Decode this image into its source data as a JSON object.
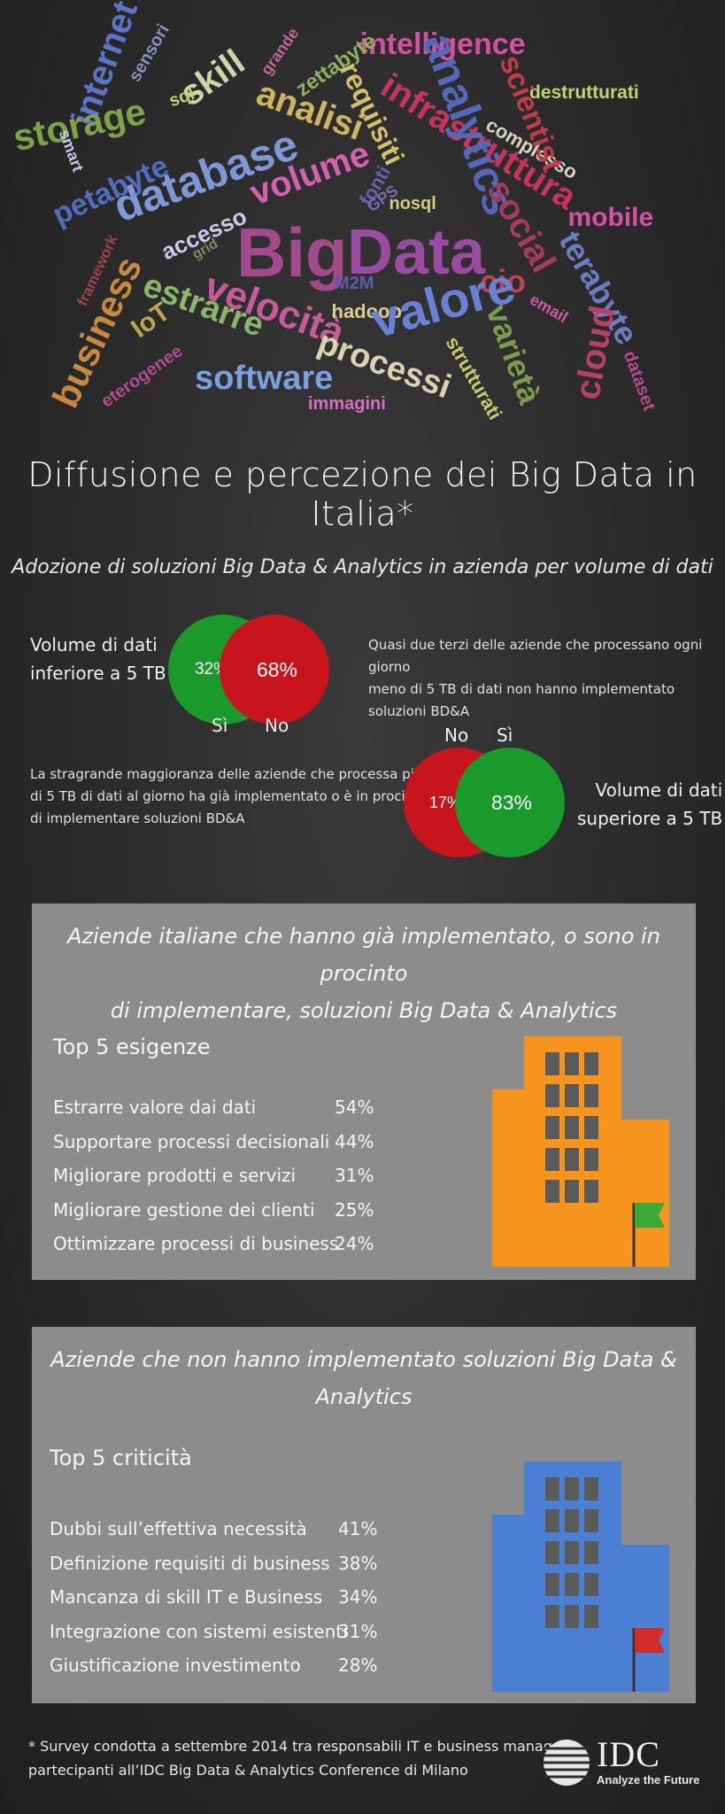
{
  "word_cloud": [
    {
      "text": "intelligence",
      "color": "#d3519c"
    },
    {
      "text": "destrutturati",
      "color": "#c5d46a"
    },
    {
      "text": "infrastruttura",
      "color": "#c8325d"
    },
    {
      "text": "complesso",
      "color": "#d8d6bd"
    },
    {
      "text": "scientist",
      "color": "#c23b4a"
    },
    {
      "text": "mobile",
      "color": "#d84fa6"
    },
    {
      "text": "analytics",
      "color": "#5567b8"
    },
    {
      "text": "internet",
      "color": "#5a74c8"
    },
    {
      "text": "sensori",
      "color": "#8a8fbe"
    },
    {
      "text": "skill",
      "color": "#cdd6a6"
    },
    {
      "text": "grande",
      "color": "#c26496"
    },
    {
      "text": "zettabyte",
      "color": "#8cb060"
    },
    {
      "text": "sql",
      "color": "#c6cc78"
    },
    {
      "text": "analisi",
      "color": "#cdb45f"
    },
    {
      "text": "requisiti",
      "color": "#d2c06a"
    },
    {
      "text": "storage",
      "color": "#7ea248"
    },
    {
      "text": "smart",
      "color": "#c8c8e8"
    },
    {
      "text": "petabyte",
      "color": "#4f6ec0"
    },
    {
      "text": "database",
      "color": "#7e97d6"
    },
    {
      "text": "volume",
      "color": "#d55fb0"
    },
    {
      "text": "fonti",
      "color": "#6b5fa8"
    },
    {
      "text": "GPS",
      "color": "#7a6ab2"
    },
    {
      "text": "nosql",
      "color": "#d3cd7a"
    },
    {
      "text": "social",
      "color": "#a33a62"
    },
    {
      "text": "terabyte",
      "color": "#6c7cc4"
    },
    {
      "text": "framework",
      "color": "#9d4452"
    },
    {
      "text": "accesso",
      "color": "#cacaea"
    },
    {
      "text": "grid",
      "color": "#7e8e5a"
    },
    {
      "text": "Big",
      "color": "#a24a8c"
    },
    {
      "text": "Data",
      "color": "#9a4aa0"
    },
    {
      "text": "M2M",
      "color": "#5e5aa6"
    },
    {
      "text": "cio",
      "color": "#c53f52"
    },
    {
      "text": "email",
      "color": "#d35a9a"
    },
    {
      "text": "cloud",
      "color": "#b83e6a"
    },
    {
      "text": "business",
      "color": "#c8893e"
    },
    {
      "text": "IoT",
      "color": "#bba848"
    },
    {
      "text": "estrarre",
      "color": "#8cb66a"
    },
    {
      "text": "velocità",
      "color": "#c85a98"
    },
    {
      "text": "hadoop",
      "color": "#d6cf8a"
    },
    {
      "text": "valore",
      "color": "#6a80d2"
    },
    {
      "text": "varietà",
      "color": "#7e9a4c"
    },
    {
      "text": "eterogenee",
      "color": "#b24a8c"
    },
    {
      "text": "software",
      "color": "#7aa0e0"
    },
    {
      "text": "processi",
      "color": "#d9d3b0"
    },
    {
      "text": "strutturati",
      "color": "#c6cc6a"
    },
    {
      "text": "immagini",
      "color": "#d66fc0"
    },
    {
      "text": "dataset",
      "color": "#b84a8a"
    }
  ],
  "title": "Diffusione e percezione dei Big Data in Italia*",
  "adoption": {
    "title": "Adozione di soluzioni Big Data & Analytics in azienda per volume di dati",
    "groups": [
      {
        "label_line1": "Volume di dati",
        "label_line2": "inferiore a 5 TB",
        "note_line1": "Quasi due terzi delle aziende che processano ogni giorno",
        "note_line2": "meno di 5 TB di dati non hanno implementato soluzioni BD&A",
        "yes_label": "Sì",
        "no_label": "No",
        "yes_pct": "32%",
        "no_pct": "68%",
        "yes_value": 32,
        "no_value": 68
      },
      {
        "label_line1": "Volume di dati",
        "label_line2": "superiore a 5 TB",
        "note_line1": "La stragrande maggioranza delle aziende che processa più",
        "note_line2": "di 5 TB di dati al giorno ha già implementato o è in procinto",
        "note_line3": "di implementare soluzioni BD&A",
        "yes_label": "Sì",
        "no_label": "No",
        "yes_pct": "83%",
        "no_pct": "17%",
        "yes_value": 83,
        "no_value": 17
      }
    ]
  },
  "chart_data": [
    {
      "type": "table",
      "title": "Top 5 esigenze",
      "rows": [
        {
          "label": "Estrarre valore dai dati",
          "value": 54,
          "text": "54%"
        },
        {
          "label": "Supportare processi decisionali",
          "value": 44,
          "text": "44%"
        },
        {
          "label": "Migliorare prodotti e servizi",
          "value": 31,
          "text": "31%"
        },
        {
          "label": "Migliorare gestione dei clienti",
          "value": 25,
          "text": "25%"
        },
        {
          "label": "Ottimizzare processi di business",
          "value": 24,
          "text": "24%"
        }
      ]
    },
    {
      "type": "table",
      "title": "Top 5 criticità",
      "rows": [
        {
          "label": "Dubbi sull’effettiva necessità",
          "value": 41,
          "text": "41%"
        },
        {
          "label": "Definizione requisiti di business",
          "value": 38,
          "text": "38%"
        },
        {
          "label": "Mancanza di skill IT e Business",
          "value": 34,
          "text": "34%"
        },
        {
          "label": "Integrazione con sistemi esistenti",
          "value": 31,
          "text": "31%"
        },
        {
          "label": "Giustificazione investimento",
          "value": 28,
          "text": "28%"
        }
      ]
    }
  ],
  "panel1": {
    "title_line1": "Aziende italiane che hanno già implementato, o sono in procinto",
    "title_line2": "di implementare, soluzioni Big Data & Analytics",
    "building_color": "#f7941d",
    "flag_color": "#3aaa35"
  },
  "panel2": {
    "title": "Aziende che non hanno implementato soluzioni Big Data & Analytics",
    "building_color": "#4a7fd4",
    "flag_color": "#d42a2a"
  },
  "colors": {
    "yes": "#1a9a2a",
    "no": "#c8141c",
    "panel": "#8c8c8c"
  },
  "footnote": {
    "line1": "* Survey condotta a settembre 2014 tra responsabili IT e business manager",
    "line2": "partecipanti all’IDC Big Data & Analytics Conference di Milano"
  },
  "logo": {
    "name": "IDC",
    "tagline": "Analyze the Future"
  }
}
